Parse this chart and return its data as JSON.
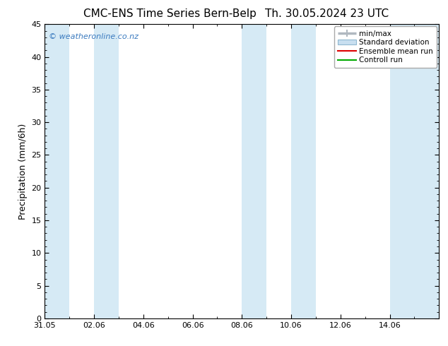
{
  "title_left": "CMC-ENS Time Series Bern-Belp",
  "title_right": "Th. 30.05.2024 23 UTC",
  "ylabel": "Precipitation (mm/6h)",
  "ylim": [
    0,
    45
  ],
  "yticks": [
    0,
    5,
    10,
    15,
    20,
    25,
    30,
    35,
    40,
    45
  ],
  "xlim": [
    0,
    16
  ],
  "xtick_labels": [
    "31.05",
    "02.06",
    "04.06",
    "06.06",
    "08.06",
    "10.06",
    "12.06",
    "14.06"
  ],
  "xtick_positions": [
    0,
    2,
    4,
    6,
    8,
    10,
    12,
    14
  ],
  "shaded_bands": [
    [
      0.0,
      1.0
    ],
    [
      2.0,
      3.0
    ],
    [
      8.0,
      9.0
    ],
    [
      10.0,
      11.0
    ],
    [
      14.0,
      16.0
    ]
  ],
  "band_color": "#d6eaf5",
  "background_color": "#ffffff",
  "watermark": "© weatheronline.co.nz",
  "watermark_color": "#3a7abf",
  "legend_items": [
    {
      "label": "min/max",
      "color": "#b0b8c0",
      "type": "hbar"
    },
    {
      "label": "Standard deviation",
      "color": "#c8dff0",
      "type": "box"
    },
    {
      "label": "Ensemble mean run",
      "color": "#dd0000",
      "type": "line"
    },
    {
      "label": "Controll run",
      "color": "#00aa00",
      "type": "line"
    }
  ],
  "title_fontsize": 11,
  "axis_label_fontsize": 9,
  "tick_fontsize": 8,
  "legend_fontsize": 7.5
}
